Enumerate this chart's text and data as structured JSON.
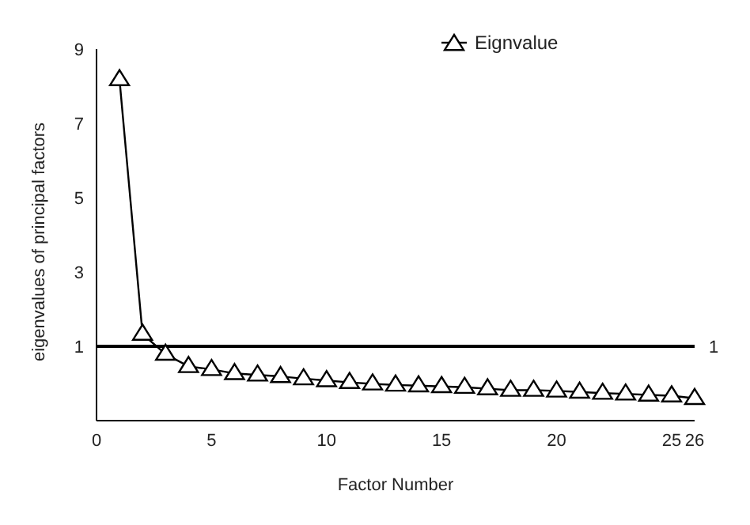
{
  "chart_data": {
    "type": "line",
    "xlabel": "Factor Number",
    "ylabel": "eigenvalues of principal factors",
    "x": [
      1,
      2,
      3,
      4,
      5,
      6,
      7,
      8,
      9,
      10,
      11,
      12,
      13,
      14,
      15,
      16,
      17,
      18,
      19,
      20,
      21,
      22,
      23,
      24,
      25,
      26
    ],
    "series": [
      {
        "name": "Eignvalue",
        "color": "#000000",
        "values": [
          8.18,
          1.33,
          0.79,
          0.46,
          0.38,
          0.27,
          0.23,
          0.19,
          0.13,
          0.08,
          0.03,
          -0.01,
          -0.04,
          -0.06,
          -0.08,
          -0.1,
          -0.14,
          -0.18,
          -0.18,
          -0.2,
          -0.23,
          -0.26,
          -0.28,
          -0.31,
          -0.33,
          -0.4
        ]
      }
    ],
    "xlim": [
      0,
      26
    ],
    "xticks": [
      0,
      5,
      10,
      15,
      20,
      25,
      26
    ],
    "ylim": [
      -1,
      9
    ],
    "yticks": [
      1,
      3,
      5,
      7,
      9
    ],
    "ref_lines": [
      {
        "axis": "y",
        "value": 1,
        "label": "1",
        "color": "#000000"
      }
    ],
    "legend": "top right",
    "marker": "triangle",
    "line_style": "solid",
    "grid": false
  }
}
